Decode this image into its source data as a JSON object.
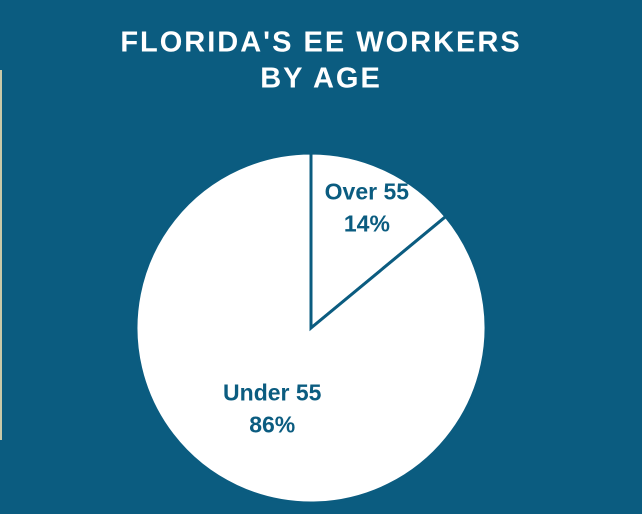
{
  "chart_data": {
    "type": "pie",
    "title": [
      "FLORIDA'S EE WORKERS",
      "BY AGE"
    ],
    "categories": [
      "Over 55",
      "Under 55"
    ],
    "values": [
      14,
      86
    ],
    "value_labels": [
      "14%",
      "86%"
    ],
    "colors": [
      "#ffffff",
      "#ffffff"
    ],
    "edge_color": "#0b5c80",
    "label_color": "#0b5c80",
    "background": "#0b5c80"
  }
}
